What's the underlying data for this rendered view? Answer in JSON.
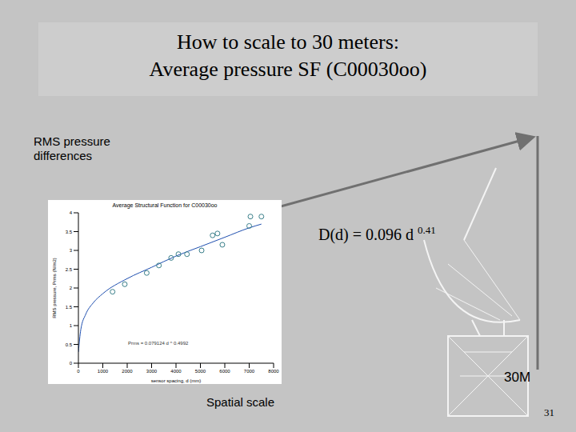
{
  "slide": {
    "title_lines": [
      "How to scale to 30 meters:",
      "Average pressure SF (C00030oo)"
    ],
    "left_label": "RMS pressure differences",
    "formula": {
      "text": "D(d) = 0.096 d",
      "exponent": "0.41"
    },
    "height_label": "30M",
    "bottom_label": "Spatial scale",
    "page_number": "31"
  },
  "chart_data": {
    "type": "scatter",
    "title": "Average Structural Function for C00030oo",
    "x_label": "sensor spacing, d (mm)",
    "y_label": "RMS pressure, Prms (N/m2)",
    "annotation": "Prms = 0.079124 d ^ 0.4992",
    "xlim": [
      0,
      8000
    ],
    "xticks": [
      0,
      1000,
      2000,
      3000,
      4000,
      5000,
      6000,
      7000,
      8000
    ],
    "ylim": [
      0,
      4
    ],
    "yticks": [
      0,
      0.5,
      1,
      1.5,
      2,
      2.5,
      3,
      3.5,
      4
    ],
    "grid": false,
    "series": [
      {
        "type": "scatter",
        "marker": "circle",
        "color": "#3a7f8a",
        "x": [
          1400,
          1900,
          2800,
          3300,
          3800,
          4100,
          4450,
          5050,
          5500,
          5700,
          5900,
          7000,
          7050,
          7500
        ],
        "values": [
          1.9,
          2.1,
          2.4,
          2.6,
          2.8,
          2.9,
          2.9,
          3.0,
          3.4,
          3.45,
          3.15,
          3.65,
          3.9,
          3.9
        ]
      },
      {
        "type": "line",
        "line_style": "solid",
        "color": "#2050b0",
        "x": [
          0,
          100,
          300,
          600,
          1000,
          2000,
          3000,
          4000,
          5000,
          6000,
          7000,
          7500
        ],
        "values": [
          0.3,
          0.9,
          1.3,
          1.6,
          1.85,
          2.25,
          2.55,
          2.85,
          3.1,
          3.35,
          3.6,
          3.7
        ]
      }
    ]
  }
}
